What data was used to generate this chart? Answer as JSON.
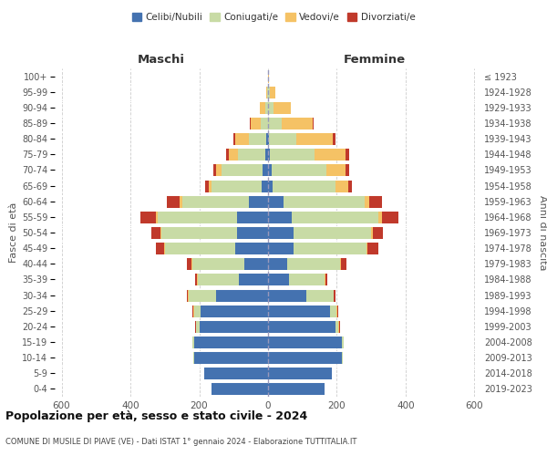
{
  "age_groups": [
    "0-4",
    "5-9",
    "10-14",
    "15-19",
    "20-24",
    "25-29",
    "30-34",
    "35-39",
    "40-44",
    "45-49",
    "50-54",
    "55-59",
    "60-64",
    "65-69",
    "70-74",
    "75-79",
    "80-84",
    "85-89",
    "90-94",
    "95-99",
    "100+"
  ],
  "birth_years": [
    "2019-2023",
    "2014-2018",
    "2009-2013",
    "2004-2008",
    "1999-2003",
    "1994-1998",
    "1989-1993",
    "1984-1988",
    "1979-1983",
    "1974-1978",
    "1969-1973",
    "1964-1968",
    "1959-1963",
    "1954-1958",
    "1949-1953",
    "1944-1948",
    "1939-1943",
    "1934-1938",
    "1929-1933",
    "1924-1928",
    "≤ 1923"
  ],
  "maschi": {
    "celibi": [
      165,
      185,
      215,
      215,
      200,
      195,
      150,
      85,
      70,
      95,
      90,
      90,
      55,
      18,
      15,
      8,
      5,
      0,
      0,
      0,
      0
    ],
    "coniugati": [
      0,
      0,
      2,
      5,
      8,
      20,
      80,
      120,
      150,
      205,
      220,
      230,
      195,
      145,
      120,
      80,
      50,
      20,
      8,
      2,
      0
    ],
    "vedovi": [
      0,
      0,
      0,
      0,
      2,
      2,
      2,
      2,
      2,
      2,
      3,
      5,
      8,
      10,
      15,
      25,
      40,
      30,
      15,
      3,
      0
    ],
    "divorziati": [
      0,
      0,
      0,
      0,
      2,
      2,
      5,
      5,
      15,
      25,
      25,
      45,
      35,
      10,
      10,
      8,
      5,
      2,
      0,
      0,
      0
    ]
  },
  "femmine": {
    "nubili": [
      165,
      185,
      215,
      215,
      195,
      180,
      110,
      60,
      55,
      75,
      75,
      70,
      45,
      12,
      10,
      5,
      2,
      0,
      0,
      0,
      0
    ],
    "coniugate": [
      0,
      0,
      2,
      5,
      10,
      20,
      80,
      105,
      155,
      210,
      225,
      250,
      235,
      185,
      160,
      130,
      80,
      40,
      15,
      5,
      0
    ],
    "vedove": [
      0,
      0,
      0,
      0,
      2,
      2,
      2,
      2,
      3,
      5,
      5,
      10,
      15,
      35,
      55,
      90,
      105,
      90,
      50,
      15,
      2
    ],
    "divorziate": [
      0,
      0,
      0,
      0,
      2,
      2,
      5,
      5,
      15,
      30,
      30,
      50,
      35,
      12,
      10,
      10,
      8,
      3,
      0,
      0,
      0
    ]
  },
  "colors": {
    "celibi": "#4472b0",
    "coniugati": "#c8dba5",
    "vedovi": "#f5c265",
    "divorziati": "#c0392b"
  },
  "xlim": 620,
  "title": "Popolazione per età, sesso e stato civile - 2024",
  "subtitle": "COMUNE DI MUSILE DI PIAVE (VE) - Dati ISTAT 1° gennaio 2024 - Elaborazione TUTTITALIA.IT",
  "xlabel_maschi": "Maschi",
  "xlabel_femmine": "Femmine",
  "ylabel": "Fasce di età",
  "ylabel_right": "Anni di nascita",
  "legend_labels": [
    "Celibi/Nubili",
    "Coniugati/e",
    "Vedovi/e",
    "Divorziati/e"
  ]
}
